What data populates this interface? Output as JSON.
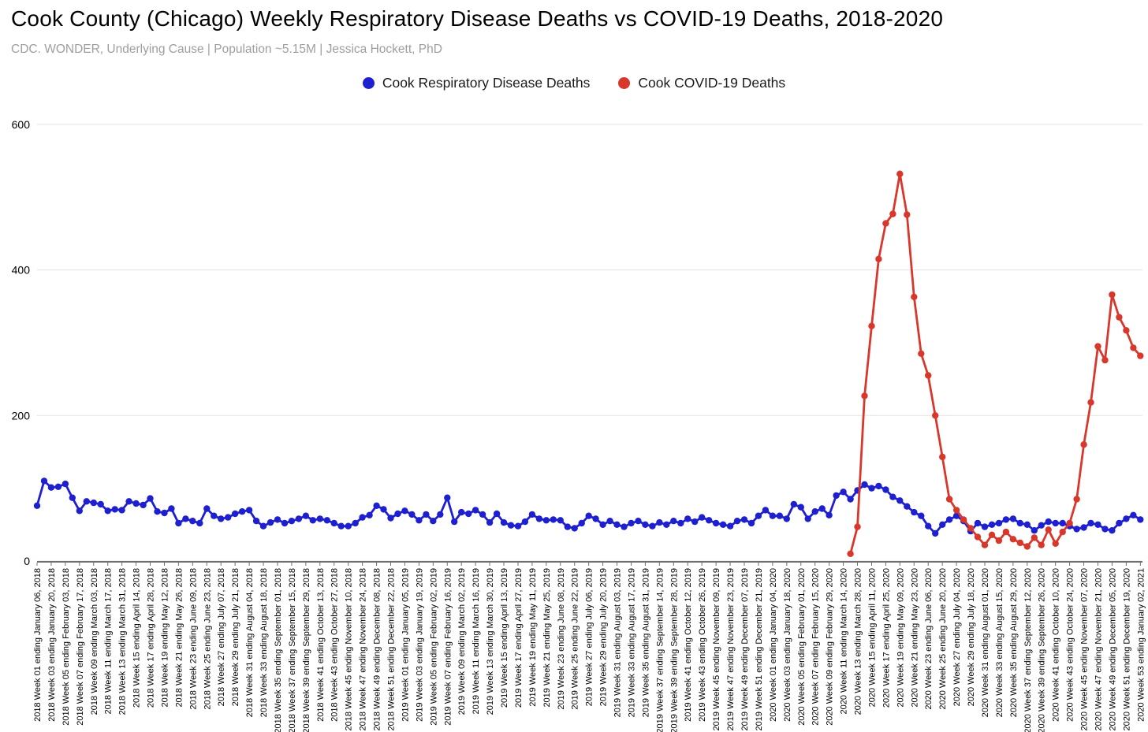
{
  "header": {
    "title": "Cook County (Chicago) Weekly Respiratory Disease Deaths vs COVID-19 Deaths, 2018-2020",
    "subtitle": "CDC. WONDER, Underlying Cause | Population ~5.15M | Jessica Hockett, PhD"
  },
  "legend": {
    "items": [
      {
        "label": "Cook Respiratory Disease Deaths",
        "color": "#1e20cf"
      },
      {
        "label": "Cook COVID-19 Deaths",
        "color": "#d8382c"
      }
    ]
  },
  "chart_data": {
    "type": "line",
    "title": "Cook County (Chicago) Weekly Respiratory Disease Deaths vs COVID-19 Deaths, 2018-2020",
    "xlabel": "",
    "ylabel": "",
    "ylim": [
      0,
      600
    ],
    "y_ticks": [
      0,
      200,
      400,
      600
    ],
    "grid": "horizontal",
    "legend_position": "top-center",
    "x_tick_step_weeks": 2,
    "x_labels": [
      "2018 Week 01 ending January 06, 2018",
      "2018 Week 03 ending January 20, 2018",
      "2018 Week 05 ending February 03, 2018",
      "2018 Week 07 ending February 17, 2018",
      "2018 Week 09 ending March 03, 2018",
      "2018 Week 11 ending March 17, 2018",
      "2018 Week 13 ending March 31, 2018",
      "2018 Week 15 ending April 14, 2018",
      "2018 Week 17 ending April 28, 2018",
      "2018 Week 19 ending May 12, 2018",
      "2018 Week 21 ending May 26, 2018",
      "2018 Week 23 ending June 09, 2018",
      "2018 Week 25 ending June 23, 2018",
      "2018 Week 27 ending July 07, 2018",
      "2018 Week 29 ending July 21, 2018",
      "2018 Week 31 ending August 04, 2018",
      "2018 Week 33 ending August 18, 2018",
      "2018 Week 35 ending September 01, 2018",
      "2018 Week 37 ending September 15, 2018",
      "2018 Week 39 ending September 29, 2018",
      "2018 Week 41 ending October 13, 2018",
      "2018 Week 43 ending October 27, 2018",
      "2018 Week 45 ending November 10, 2018",
      "2018 Week 47 ending November 24, 2018",
      "2018 Week 49 ending December 08, 2018",
      "2018 Week 51 ending December 22, 2018",
      "2019 Week 01 ending January 05, 2019",
      "2019 Week 03 ending January 19, 2019",
      "2019 Week 05 ending February 02, 2019",
      "2019 Week 07 ending February 16, 2019",
      "2019 Week 09 ending March 02, 2019",
      "2019 Week 11 ending March 16, 2019",
      "2019 Week 13 ending March 30, 2019",
      "2019 Week 15 ending April 13, 2019",
      "2019 Week 17 ending April 27, 2019",
      "2019 Week 19 ending May 11, 2019",
      "2019 Week 21 ending May 25, 2019",
      "2019 Week 23 ending June 08, 2019",
      "2019 Week 25 ending June 22, 2019",
      "2019 Week 27 ending July 06, 2019",
      "2019 Week 29 ending July 20, 2019",
      "2019 Week 31 ending August 03, 2019",
      "2019 Week 33 ending August 17, 2019",
      "2019 Week 35 ending August 31, 2019",
      "2019 Week 37 ending September 14, 2019",
      "2019 Week 39 ending September 28, 2019",
      "2019 Week 41 ending October 12, 2019",
      "2019 Week 43 ending October 26, 2019",
      "2019 Week 45 ending November 09, 2019",
      "2019 Week 47 ending November 23, 2019",
      "2019 Week 49 ending December 07, 2019",
      "2019 Week 51 ending December 21, 2019",
      "2020 Week 01 ending January 04, 2020",
      "2020 Week 03 ending January 18, 2020",
      "2020 Week 05 ending February 01, 2020",
      "2020 Week 07 ending February 15, 2020",
      "2020 Week 09 ending February 29, 2020",
      "2020 Week 11 ending March 14, 2020",
      "2020 Week 13 ending March 28, 2020",
      "2020 Week 15 ending April 11, 2020",
      "2020 Week 17 ending April 25, 2020",
      "2020 Week 19 ending May 09, 2020",
      "2020 Week 21 ending May 23, 2020",
      "2020 Week 23 ending June 06, 2020",
      "2020 Week 25 ending June 20, 2020",
      "2020 Week 27 ending July 04, 2020",
      "2020 Week 29 ending July 18, 2020",
      "2020 Week 31 ending August 01, 2020",
      "2020 Week 33 ending August 15, 2020",
      "2020 Week 35 ending August 29, 2020",
      "2020 Week 37 ending September 12, 2020",
      "2020 Week 39 ending September 26, 2020",
      "2020 Week 41 ending October 10, 2020",
      "2020 Week 43 ending October 24, 2020",
      "2020 Week 45 ending November 07, 2020",
      "2020 Week 47 ending November 21, 2020",
      "2020 Week 49 ending December 05, 2020",
      "2020 Week 51 ending December 19, 2020",
      "2020 Week 53 ending January 02, 2021"
    ],
    "series": [
      {
        "name": "Cook Respiratory Disease Deaths",
        "color": "#1e20cf",
        "start": 0,
        "values": [
          76,
          110,
          101,
          102,
          106,
          87,
          69,
          82,
          80,
          78,
          69,
          71,
          70,
          82,
          79,
          77,
          86,
          68,
          66,
          72,
          52,
          58,
          55,
          52,
          72,
          62,
          58,
          60,
          65,
          68,
          70,
          55,
          48,
          53,
          57,
          52,
          55,
          58,
          62,
          56,
          58,
          56,
          52,
          48,
          48,
          52,
          60,
          63,
          76,
          71,
          59,
          65,
          69,
          64,
          56,
          64,
          55,
          64,
          87,
          54,
          67,
          65,
          70,
          64,
          53,
          65,
          53,
          49,
          48,
          54,
          64,
          58,
          56,
          57,
          56,
          47,
          45,
          52,
          62,
          58,
          50,
          55,
          50,
          47,
          52,
          55,
          50,
          48,
          53,
          50,
          55,
          52,
          58,
          54,
          60,
          56,
          52,
          50,
          48,
          55,
          57,
          52,
          62,
          70,
          62,
          62,
          58,
          78,
          74,
          58,
          68,
          72,
          63,
          90,
          95,
          85,
          97,
          105,
          100,
          103,
          98,
          88,
          83,
          75,
          67,
          62,
          48,
          38,
          50,
          57,
          62,
          55,
          41,
          52,
          47,
          50,
          52,
          57,
          58,
          52,
          50,
          42,
          49,
          54,
          52,
          52,
          48,
          44,
          46,
          52,
          50,
          44,
          42,
          52,
          58,
          63,
          57
        ]
      },
      {
        "name": "Cook COVID-19 Deaths",
        "color": "#d8382c",
        "start": 115,
        "values": [
          10,
          47,
          227,
          323,
          415,
          464,
          477,
          532,
          476,
          363,
          285,
          255,
          200,
          143,
          85,
          70,
          57,
          45,
          33,
          22,
          36,
          28,
          40,
          30,
          25,
          20,
          32,
          22,
          43,
          24,
          40,
          52,
          85,
          160,
          218,
          295,
          276,
          366,
          335,
          317,
          293,
          282
        ]
      }
    ]
  }
}
